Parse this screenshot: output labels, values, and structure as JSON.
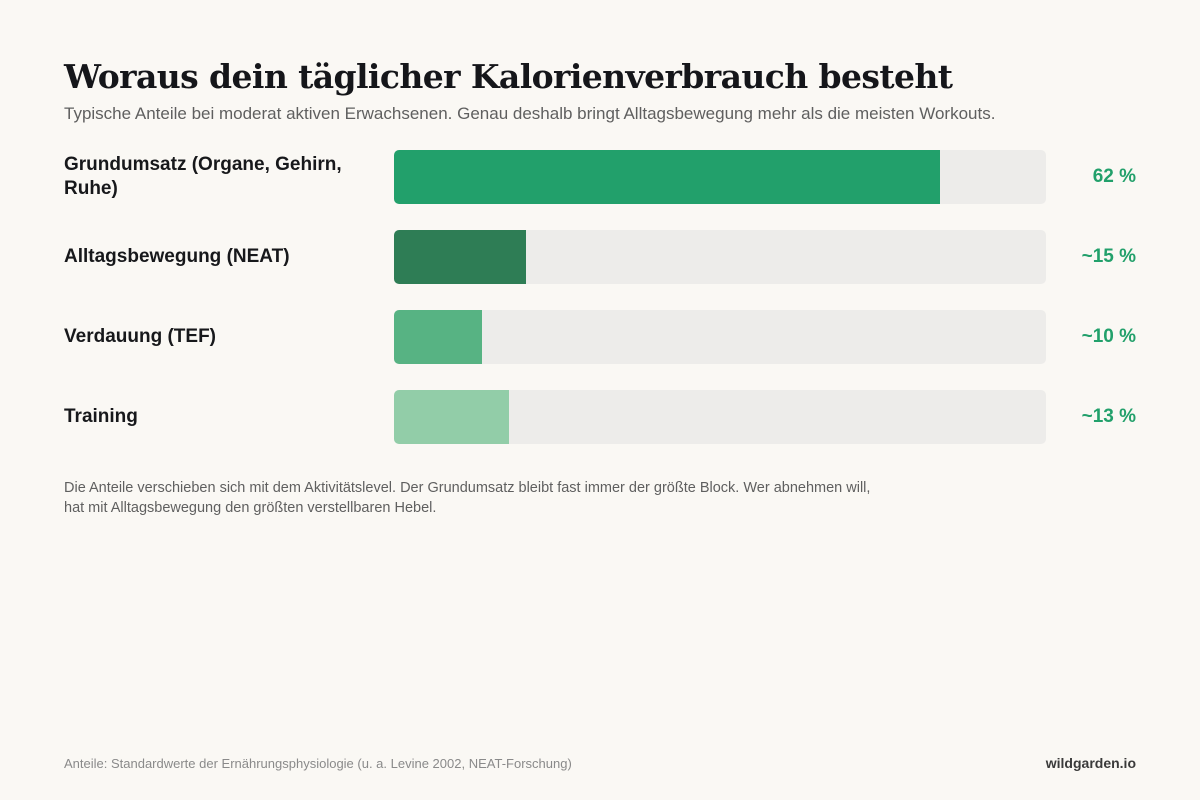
{
  "colors": {
    "background": "#faf8f4",
    "track": "#edecea",
    "value_text": "#22a06b",
    "bars": [
      "#22a06b",
      "#2e7d55",
      "#57b383",
      "#92cda8"
    ]
  },
  "footer": {
    "source": "Anteile: Standardwerte der Ernährungsphysiologie (u. a. Levine 2002, NEAT-Forschung)",
    "brand": "wildgarden.io"
  },
  "note": {
    "lines": [
      "Die Anteile verschieben sich mit dem Aktivitätslevel. Der Grundumsatz bleibt fast immer der größte Block. Wer abnehmen will,",
      "hat mit Alltagsbewegung den größten verstellbaren Hebel."
    ]
  },
  "chart_data": {
    "type": "bar",
    "orientation": "horizontal",
    "title": "Woraus dein täglicher Kalorienverbrauch besteht",
    "subtitle": "Typische Anteile bei moderat aktiven Erwachsenen. Genau deshalb bringt Alltagsbewegung mehr als die meisten Workouts.",
    "categories": [
      "Grundumsatz (Organe, Gehirn, Ruhe)",
      "Alltagsbewegung (NEAT)",
      "Verdauung (TEF)",
      "Training"
    ],
    "values": [
      62,
      15,
      10,
      13
    ],
    "value_labels": [
      "62 %",
      "~15 %",
      "~10 %",
      "~13 %"
    ],
    "xlim": [
      0,
      74
    ],
    "grid": false,
    "legend": "none"
  }
}
